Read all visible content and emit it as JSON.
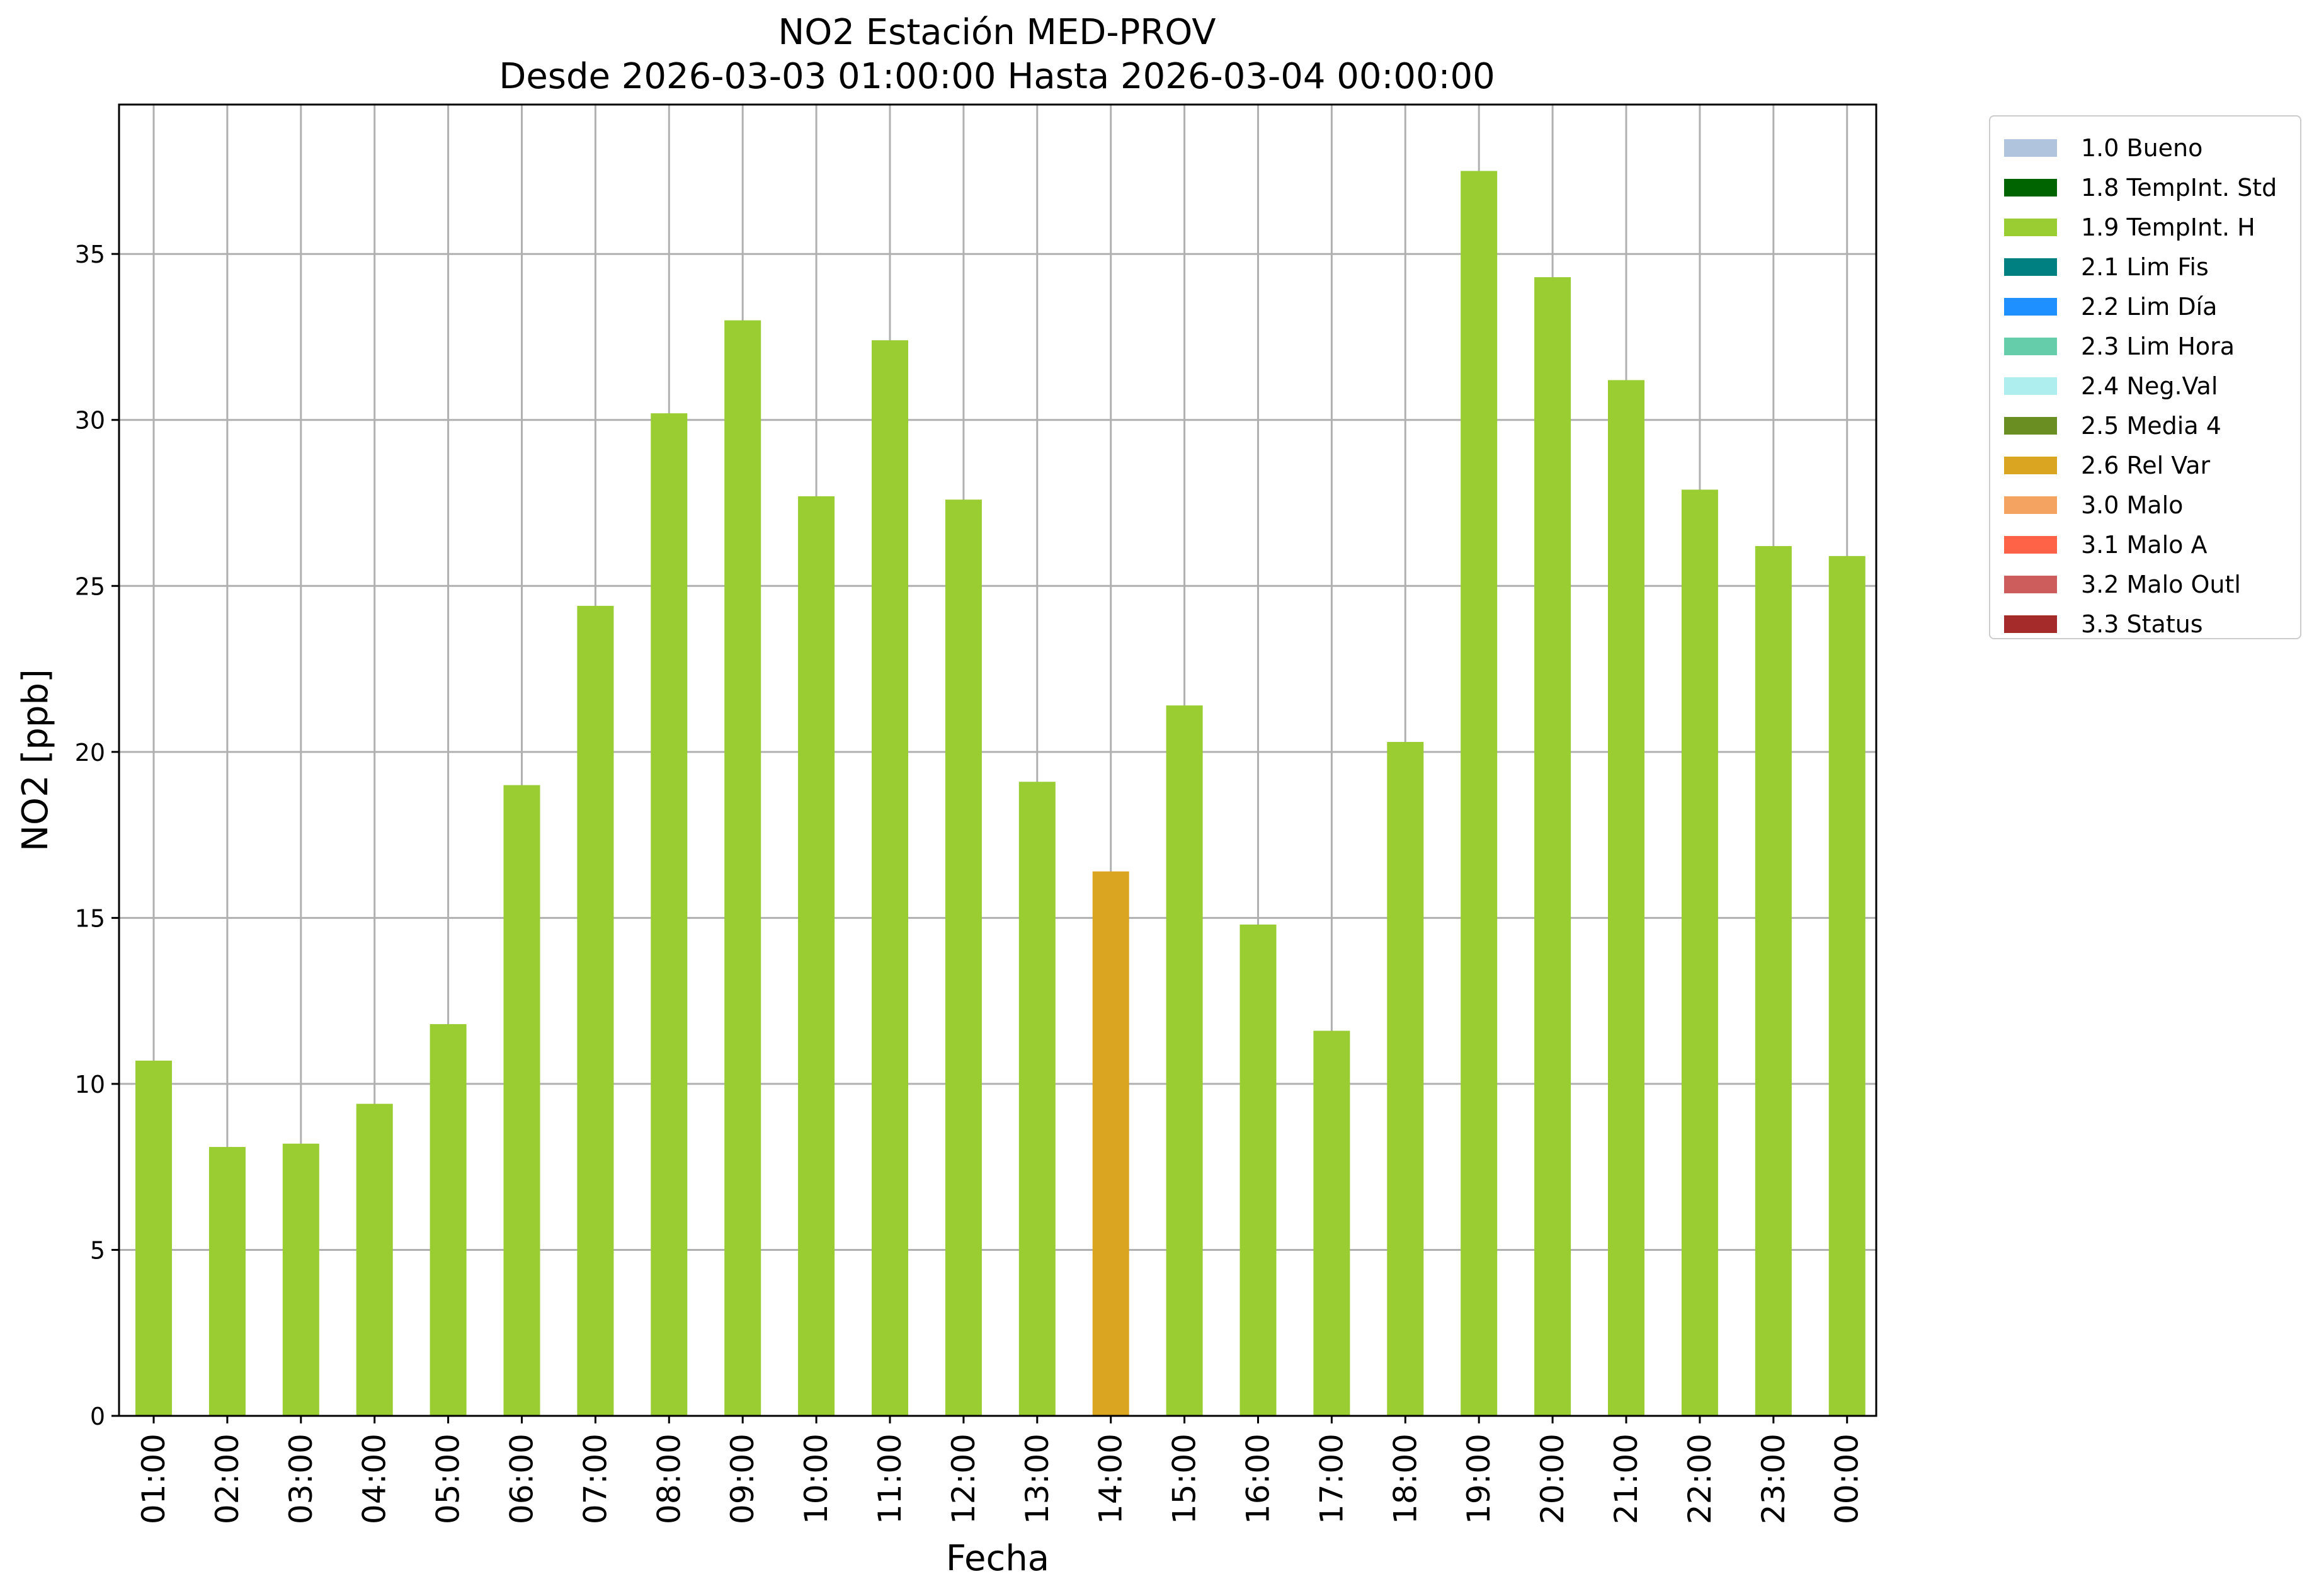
{
  "chart_data": {
    "type": "bar",
    "title": "NO2 Estación MED-PROV",
    "subtitle": "Desde 2026-03-03 01:00:00 Hasta 2026-03-04 00:00:00",
    "xlabel": "Fecha",
    "ylabel": "NO2 [ppb]",
    "ylim": [
      0,
      39.5
    ],
    "yticks": [
      0,
      5,
      10,
      15,
      20,
      25,
      30,
      35
    ],
    "grid": true,
    "legend_position": "outside-top-right",
    "categories": [
      "01:00",
      "02:00",
      "03:00",
      "04:00",
      "05:00",
      "06:00",
      "07:00",
      "08:00",
      "09:00",
      "10:00",
      "11:00",
      "12:00",
      "13:00",
      "14:00",
      "15:00",
      "16:00",
      "17:00",
      "18:00",
      "19:00",
      "20:00",
      "21:00",
      "22:00",
      "23:00",
      "00:00"
    ],
    "values": [
      10.7,
      8.1,
      8.2,
      9.4,
      11.8,
      19.0,
      24.4,
      30.2,
      33.0,
      27.7,
      32.4,
      27.6,
      19.1,
      16.4,
      21.4,
      14.8,
      11.6,
      20.3,
      37.5,
      34.3,
      31.2,
      27.9,
      26.2,
      25.9
    ],
    "flags": [
      "1.9",
      "1.9",
      "1.9",
      "1.9",
      "1.9",
      "1.9",
      "1.9",
      "1.9",
      "1.9",
      "1.9",
      "1.9",
      "1.9",
      "1.9",
      "2.6",
      "1.9",
      "1.9",
      "1.9",
      "1.9",
      "1.9",
      "1.9",
      "1.9",
      "1.9",
      "1.9",
      "1.9"
    ],
    "legend": [
      {
        "code": "1.0",
        "label": "1.0 Bueno",
        "color": "#b0c4de"
      },
      {
        "code": "1.8",
        "label": "1.8 TempInt. Std",
        "color": "#006400"
      },
      {
        "code": "1.9",
        "label": "1.9 TempInt. H",
        "color": "#9acd32"
      },
      {
        "code": "2.1",
        "label": "2.1 Lim Fis",
        "color": "#008080"
      },
      {
        "code": "2.2",
        "label": "2.2 Lim Día",
        "color": "#1e90ff"
      },
      {
        "code": "2.3",
        "label": "2.3 Lim Hora",
        "color": "#66cdaa"
      },
      {
        "code": "2.4",
        "label": "2.4 Neg.Val",
        "color": "#afeeee"
      },
      {
        "code": "2.5",
        "label": "2.5 Media 4",
        "color": "#6b8e23"
      },
      {
        "code": "2.6",
        "label": "2.6 Rel Var",
        "color": "#daa520"
      },
      {
        "code": "3.0",
        "label": "3.0 Malo",
        "color": "#f4a460"
      },
      {
        "code": "3.1",
        "label": "3.1 Malo A",
        "color": "#ff6347"
      },
      {
        "code": "3.2",
        "label": "3.2 Malo Outl",
        "color": "#cd5c5c"
      },
      {
        "code": "3.3",
        "label": "3.3 Status",
        "color": "#a52a2a"
      }
    ]
  }
}
